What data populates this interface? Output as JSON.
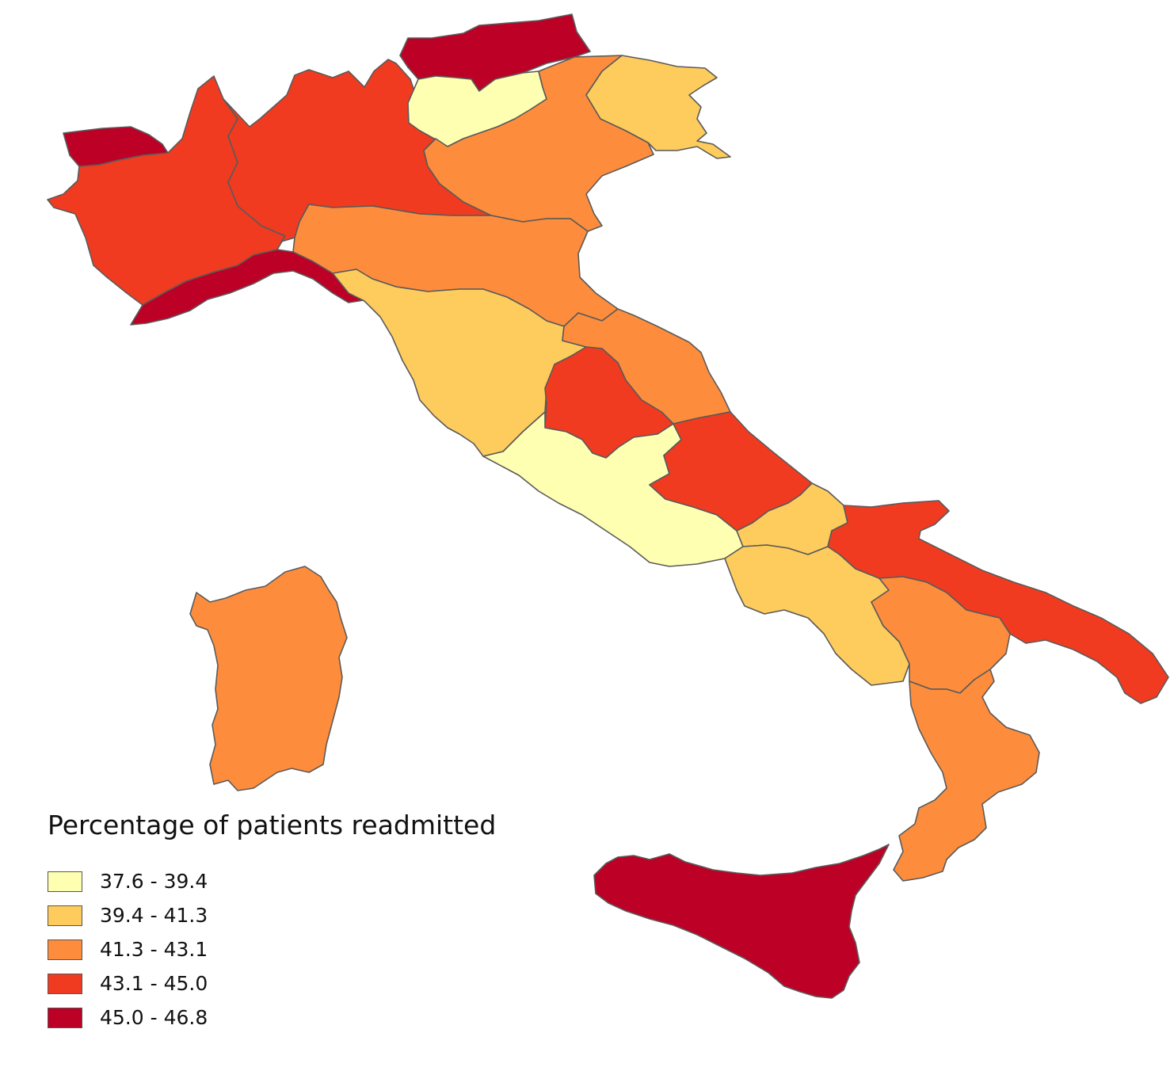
{
  "legend": {
    "title": "Percentage of patients readmitted",
    "classes": [
      {
        "label": "37.6 - 39.4",
        "color": "#ffffb2"
      },
      {
        "label": "39.4 - 41.3",
        "color": "#fecc5c"
      },
      {
        "label": "41.3 - 43.1",
        "color": "#fd8d3c"
      },
      {
        "label": "43.1 - 45.0",
        "color": "#f03b20"
      },
      {
        "label": "45.0 - 46.8",
        "color": "#bd0026"
      }
    ]
  },
  "regions": [
    {
      "name": "Valle d'Aosta",
      "class": 4
    },
    {
      "name": "Piemonte",
      "class": 3
    },
    {
      "name": "Lombardia",
      "class": 3
    },
    {
      "name": "Alto Adige",
      "class": 4
    },
    {
      "name": "Trentino",
      "class": 0
    },
    {
      "name": "Veneto",
      "class": 2
    },
    {
      "name": "Friuli-Venezia Giulia",
      "class": 1
    },
    {
      "name": "Liguria",
      "class": 4
    },
    {
      "name": "Emilia-Romagna",
      "class": 2
    },
    {
      "name": "Toscana",
      "class": 1
    },
    {
      "name": "Marche",
      "class": 2
    },
    {
      "name": "Umbria",
      "class": 3
    },
    {
      "name": "Lazio",
      "class": 0
    },
    {
      "name": "Abruzzo",
      "class": 3
    },
    {
      "name": "Molise",
      "class": 1
    },
    {
      "name": "Campania",
      "class": 1
    },
    {
      "name": "Puglia",
      "class": 3
    },
    {
      "name": "Basilicata",
      "class": 2
    },
    {
      "name": "Calabria",
      "class": 2
    },
    {
      "name": "Sicilia",
      "class": 4
    },
    {
      "name": "Sardegna",
      "class": 2
    }
  ]
}
